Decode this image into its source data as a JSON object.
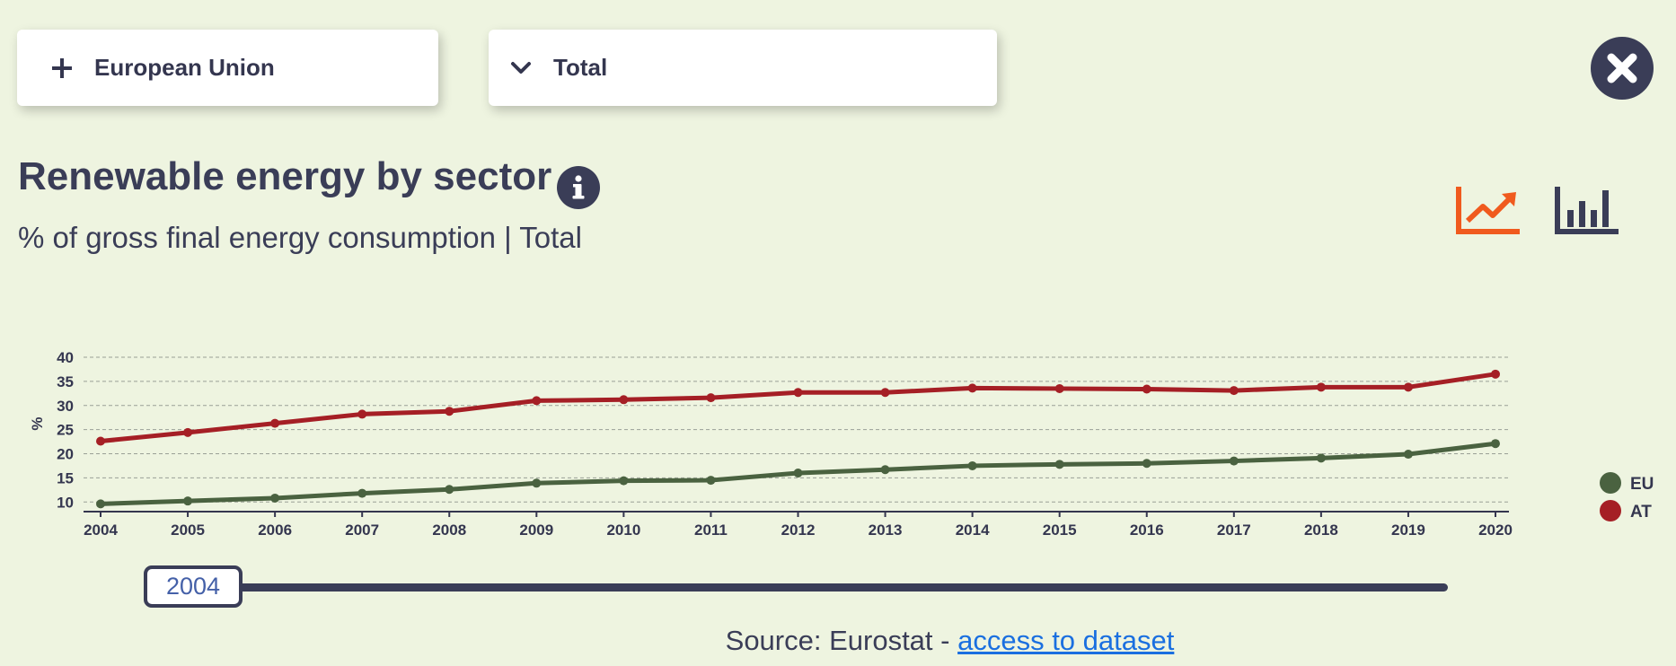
{
  "filters": {
    "country": {
      "label": "European Union",
      "icon": "plus-icon"
    },
    "sector": {
      "label": "Total",
      "icon": "chevron-down-icon"
    }
  },
  "header": {
    "title": "Renewable energy by sector",
    "subtitle": "% of gross final energy consumption | Total",
    "info_icon": "info-icon",
    "close_icon": "close-icon",
    "view_buttons": [
      {
        "icon": "line-chart-icon",
        "active": true,
        "color": "#f05a1e"
      },
      {
        "icon": "bar-chart-icon",
        "active": false,
        "color": "#3a3d57"
      }
    ]
  },
  "slider": {
    "value": "2004"
  },
  "source": {
    "prefix": "Source: Eurostat - ",
    "link_text": "access to dataset"
  },
  "colors": {
    "background": "#eef4e0",
    "text": "#3a3d57",
    "eu": "#4a6240",
    "at": "#a51f25",
    "accent": "#f05a1e",
    "link": "#1a6fe0"
  },
  "chart_data": {
    "type": "line",
    "ylabel": "%",
    "xlabel": "",
    "x": [
      "2004",
      "2005",
      "2006",
      "2007",
      "2008",
      "2009",
      "2010",
      "2011",
      "2012",
      "2013",
      "2014",
      "2015",
      "2016",
      "2017",
      "2018",
      "2019",
      "2020"
    ],
    "yticks": [
      10,
      15,
      20,
      25,
      30,
      35,
      40
    ],
    "ylim": [
      8,
      40
    ],
    "grid": true,
    "legend_position": "right",
    "series": [
      {
        "name": "EU",
        "color": "#4a6240",
        "values": [
          9.6,
          10.2,
          10.8,
          11.8,
          12.6,
          13.9,
          14.4,
          14.5,
          16.0,
          16.7,
          17.5,
          17.8,
          18.0,
          18.5,
          19.1,
          19.9,
          22.1
        ]
      },
      {
        "name": "AT",
        "color": "#a51f25",
        "values": [
          22.6,
          24.4,
          26.3,
          28.2,
          28.8,
          31.0,
          31.2,
          31.6,
          32.7,
          32.7,
          33.6,
          33.5,
          33.4,
          33.1,
          33.8,
          33.8,
          36.5
        ]
      }
    ]
  }
}
